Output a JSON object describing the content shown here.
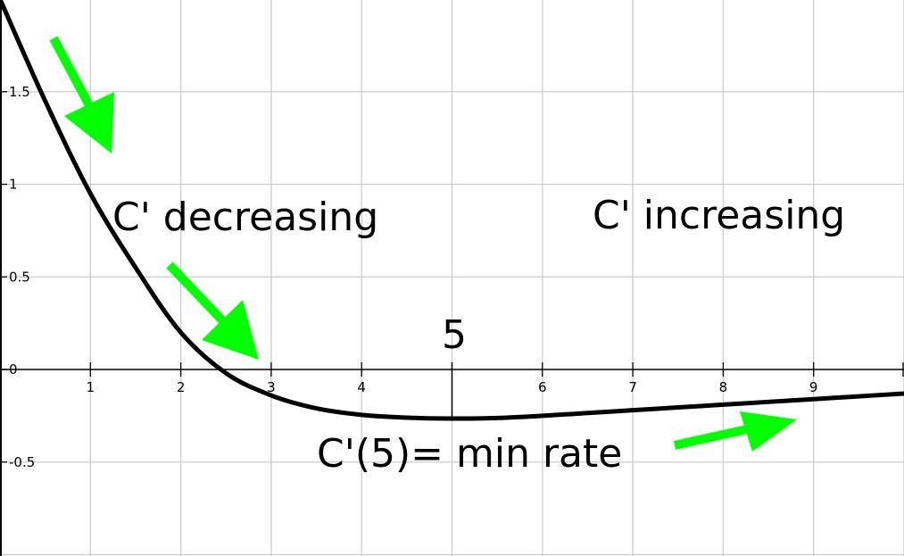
{
  "chart_data": {
    "type": "line",
    "title": "",
    "xlabel": "",
    "ylabel": "",
    "xlim": [
      0,
      10
    ],
    "ylim": [
      -1,
      2
    ],
    "grid": true,
    "x_ticks": [
      "1",
      "2",
      "3",
      "4",
      "6",
      "7",
      "8",
      "9"
    ],
    "y_ticks": [
      "1.5",
      "1",
      "0.5",
      "0",
      "-0.5"
    ],
    "series": [
      {
        "color": "#000000",
        "points": [
          [
            0,
            2.0
          ],
          [
            0.5,
            1.45
          ],
          [
            1,
            0.95
          ],
          [
            1.5,
            0.55
          ],
          [
            2,
            0.2
          ],
          [
            2.5,
            -0.02
          ],
          [
            3,
            -0.14
          ],
          [
            3.5,
            -0.21
          ],
          [
            4,
            -0.245
          ],
          [
            4.5,
            -0.26
          ],
          [
            5,
            -0.265
          ],
          [
            5.5,
            -0.262
          ],
          [
            6,
            -0.25
          ],
          [
            6.5,
            -0.235
          ],
          [
            7,
            -0.22
          ],
          [
            7.5,
            -0.205
          ],
          [
            8,
            -0.19
          ],
          [
            8.5,
            -0.175
          ],
          [
            9,
            -0.16
          ],
          [
            9.5,
            -0.145
          ],
          [
            10,
            -0.13
          ]
        ]
      }
    ],
    "marker": {
      "x": 5,
      "label": "5"
    },
    "annotations": {
      "decreasing": "C' decreasing",
      "increasing": "C' increasing",
      "min": "C'(5)= min rate"
    },
    "arrow_color": "#00ff00"
  }
}
